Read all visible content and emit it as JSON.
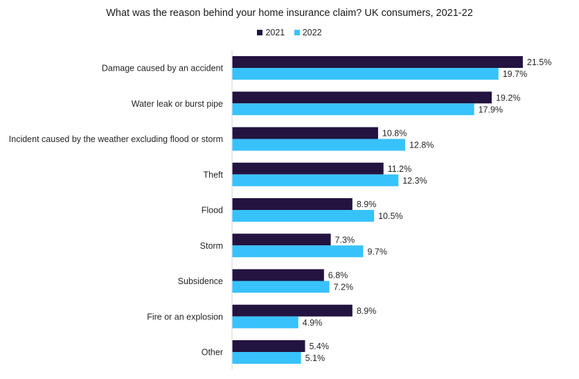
{
  "chart_data": {
    "type": "bar",
    "orientation": "horizontal",
    "title": "What was the reason behind your home insurance claim? UK consumers, 2021-22",
    "xlabel": "",
    "ylabel": "",
    "xlim": [
      0,
      22
    ],
    "grid": false,
    "legend_position": "top",
    "categories": [
      "Damage caused by an accident",
      "Water leak or burst pipe",
      "Incident caused by the weather excluding flood or storm",
      "Theft",
      "Flood",
      "Storm",
      "Subsidence",
      "Fire or an explosion",
      "Other"
    ],
    "series": [
      {
        "name": "2021",
        "color": "#231340",
        "values": [
          21.5,
          19.2,
          10.8,
          11.2,
          8.9,
          7.3,
          6.8,
          8.9,
          5.4
        ],
        "labels": [
          "21.5%",
          "19.2%",
          "10.8%",
          "11.2%",
          "8.9%",
          "7.3%",
          "6.8%",
          "8.9%",
          "5.4%"
        ]
      },
      {
        "name": "2022",
        "color": "#38C2FC",
        "values": [
          19.7,
          17.9,
          12.8,
          12.3,
          10.5,
          9.7,
          7.2,
          4.9,
          5.1
        ],
        "labels": [
          "19.7%",
          "17.9%",
          "12.8%",
          "12.3%",
          "10.5%",
          "9.7%",
          "7.2%",
          "4.9%",
          "5.1%"
        ]
      }
    ]
  }
}
